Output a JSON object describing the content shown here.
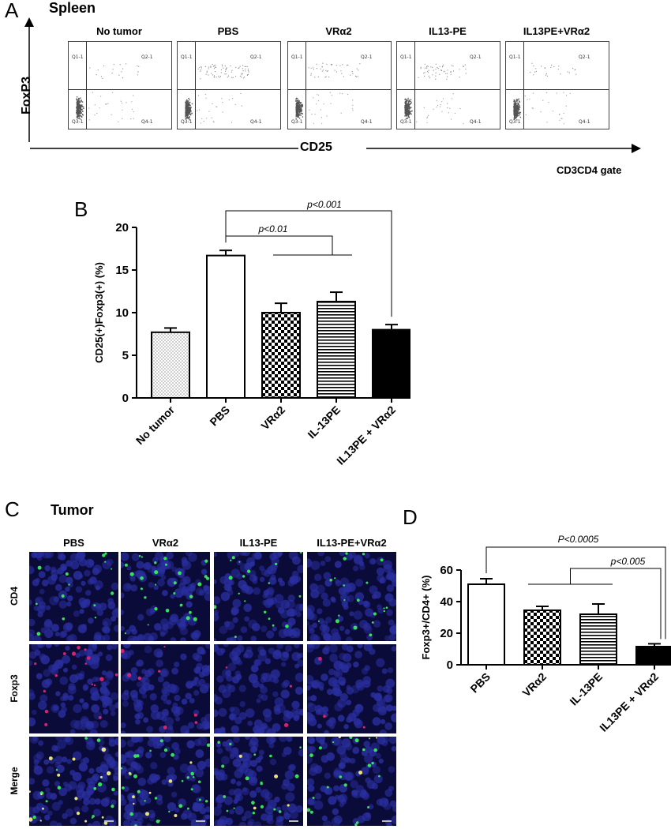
{
  "panel_a": {
    "letter": "A",
    "title": "Spleen",
    "y_axis_label": "FoxP3",
    "x_axis_label": "CD25",
    "gate_label": "CD3CD4 gate",
    "quadrants": [
      "Q1-1",
      "Q2-1",
      "Q3-1",
      "Q4-1"
    ],
    "plots": [
      {
        "title": "No tumor",
        "q2_cells": 20
      },
      {
        "title": "PBS",
        "q2_cells": 80
      },
      {
        "title": "VRα2",
        "q2_cells": 45
      },
      {
        "title": "IL13-PE",
        "q2_cells": 55
      },
      {
        "title": "IL13PE+VRα2",
        "q2_cells": 25
      }
    ]
  },
  "panel_b": {
    "letter": "B",
    "chart_data": {
      "type": "bar",
      "categories": [
        "No tumor",
        "PBS",
        "VRα2",
        "IL-13PE",
        "IL13PE + VRα2"
      ],
      "values": [
        7.7,
        16.7,
        10.0,
        11.3,
        8.0
      ],
      "errors": [
        0.5,
        0.6,
        1.1,
        1.1,
        0.6
      ],
      "patterns": [
        "dots",
        "empty",
        "checker",
        "hlines",
        "solid"
      ],
      "ylabel": "CD25(+)Foxp3(+)  (%)",
      "ylim": [
        0,
        20
      ],
      "yticks": [
        0,
        5,
        10,
        15,
        20
      ],
      "annotations": [
        "p<0.001",
        "p<0.01"
      ]
    }
  },
  "panel_c": {
    "letter": "C",
    "title": "Tumor",
    "columns": [
      "PBS",
      "VRα2",
      "IL13-PE",
      "IL13-PE+VRα2"
    ],
    "rows": [
      "CD4",
      "Foxp3",
      "Merge"
    ]
  },
  "panel_d": {
    "letter": "D",
    "chart_data": {
      "type": "bar",
      "categories": [
        "PBS",
        "VRα2",
        "IL-13PE",
        "IL13PE + VRα2"
      ],
      "values": [
        51,
        34.5,
        32,
        11.5
      ],
      "errors": [
        3.5,
        2.5,
        6.5,
        1.8
      ],
      "patterns": [
        "empty",
        "checker",
        "hlines",
        "solid"
      ],
      "ylabel": "Foxp3+/CD4+ (%)",
      "ylim": [
        0,
        60
      ],
      "yticks": [
        0,
        20,
        40,
        60
      ],
      "annotations": [
        "P<0.0005",
        "p<0.005"
      ]
    }
  },
  "colors": {
    "nucleus": "#2a2fa0",
    "cd4": "#37e05a",
    "foxp3": "#d4246e",
    "merge": "#e8e07a"
  }
}
